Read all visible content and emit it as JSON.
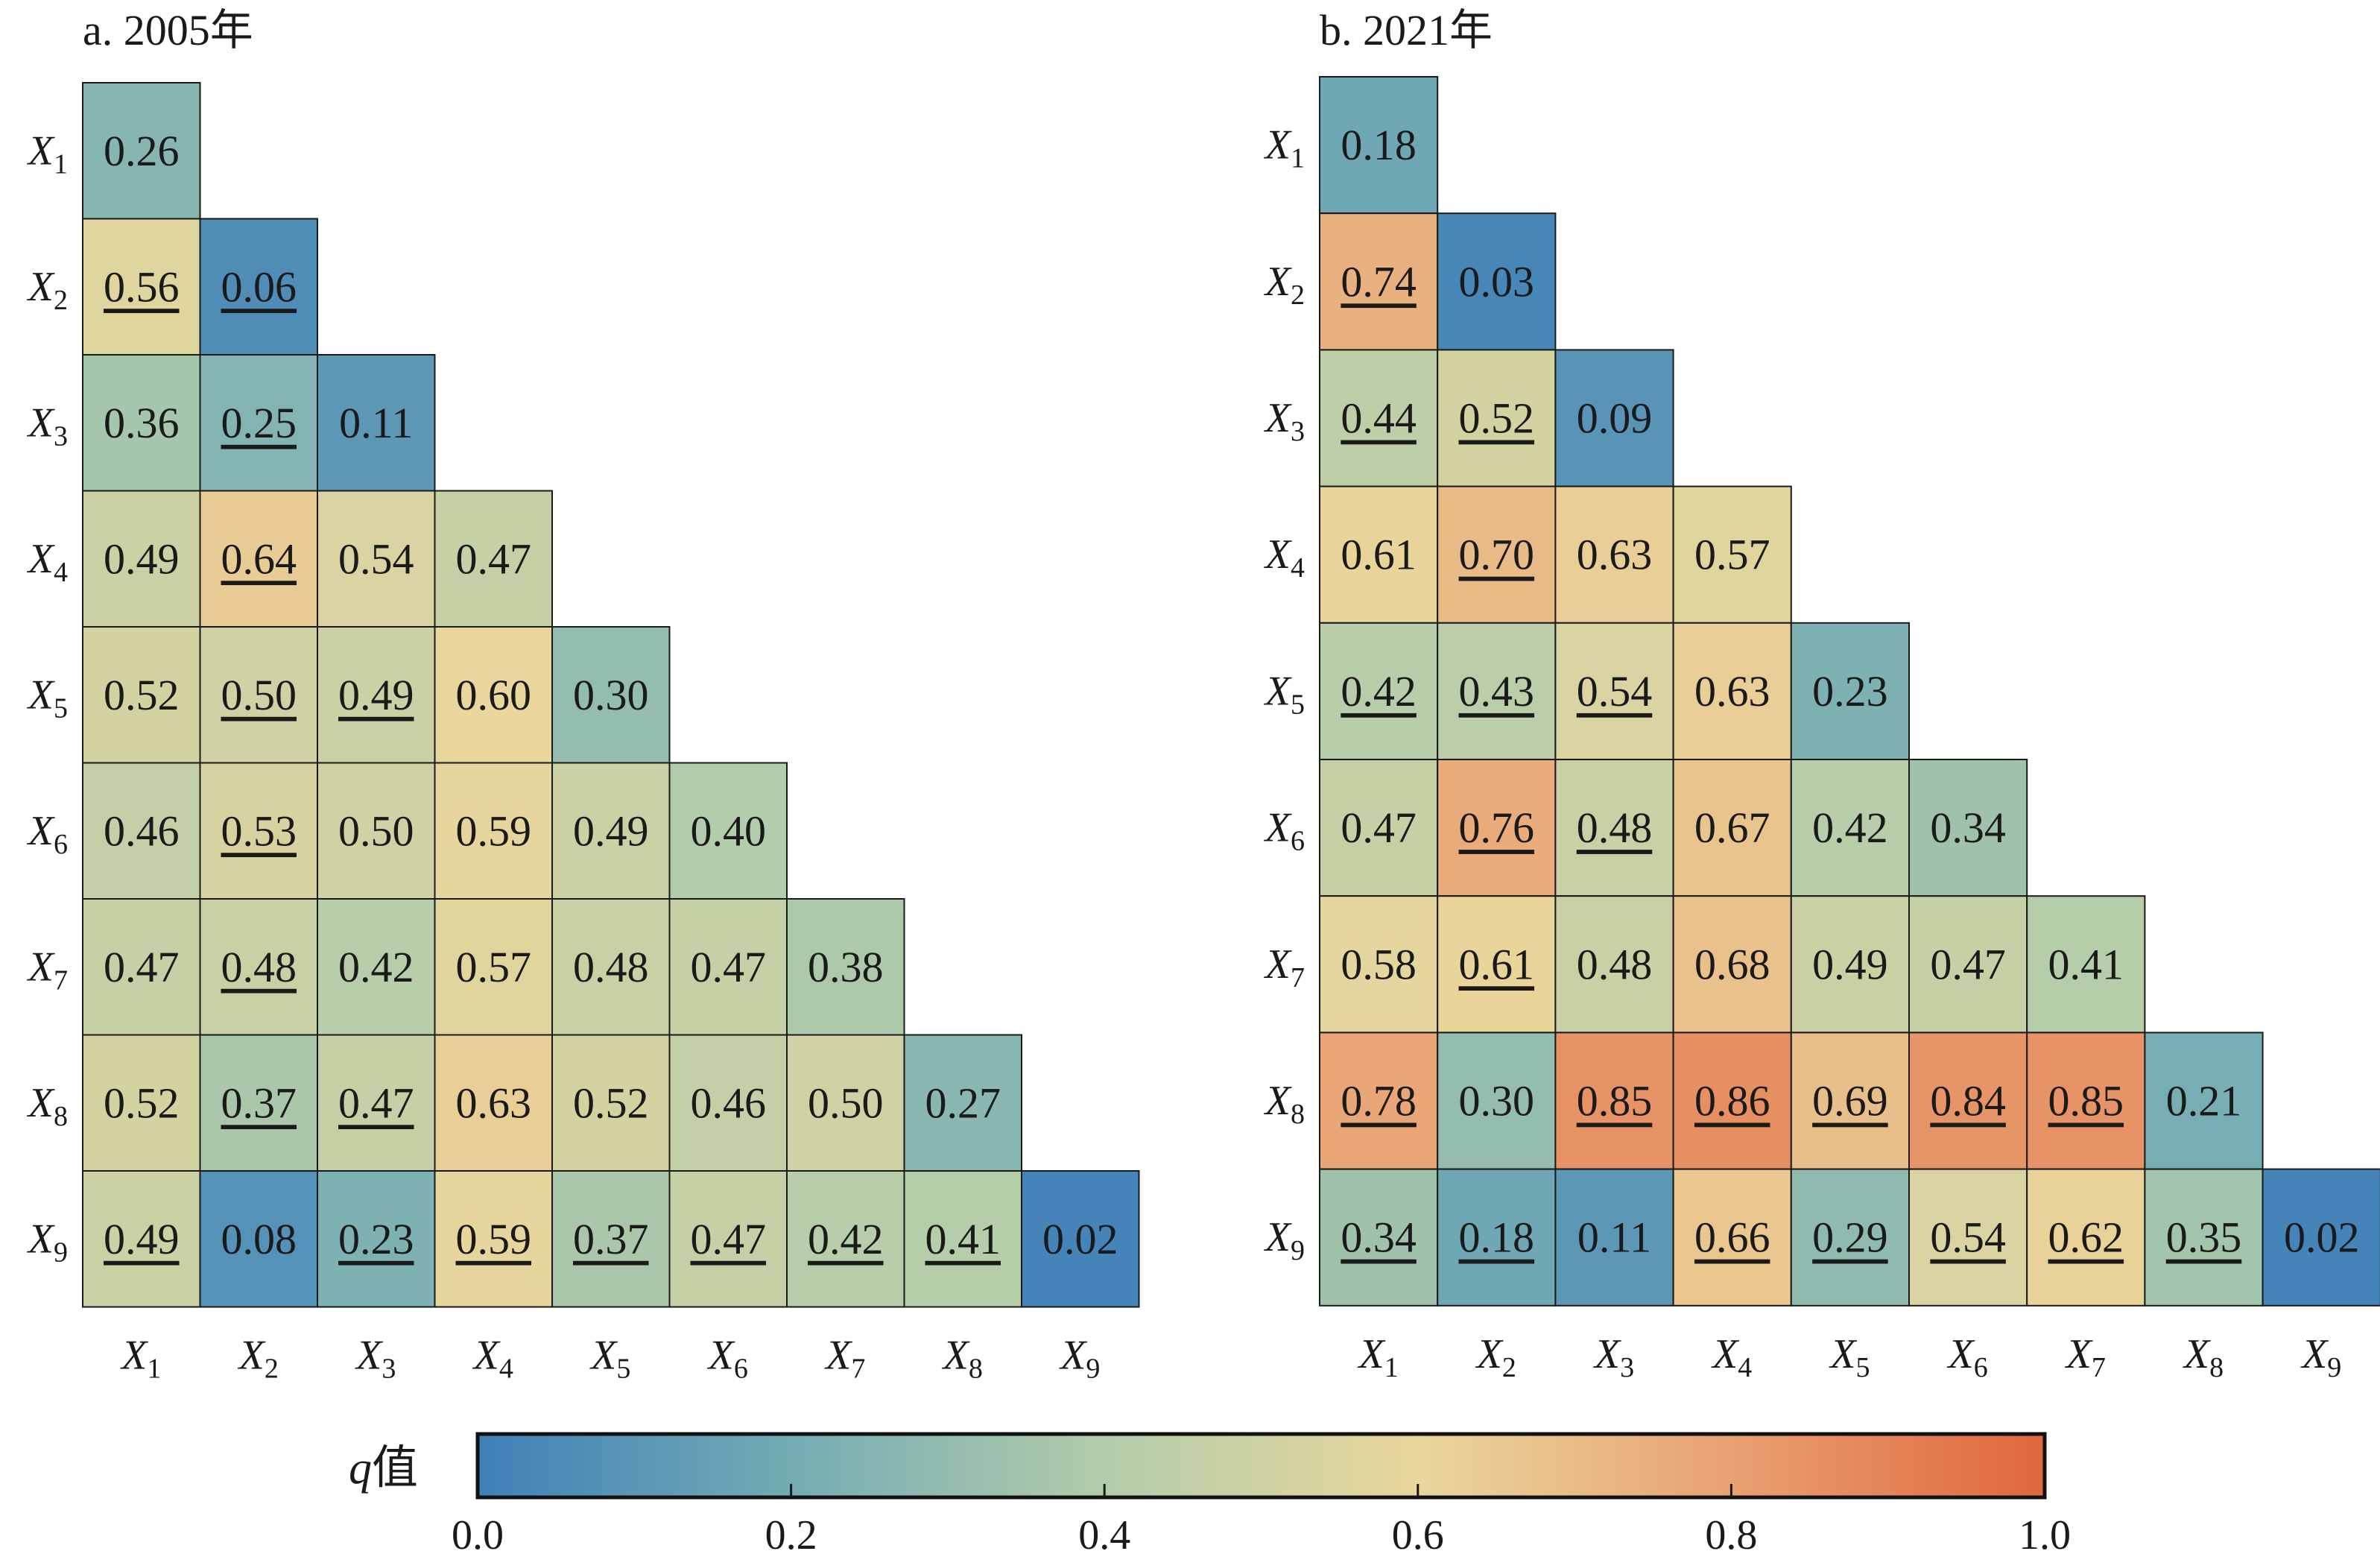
{
  "chart_data": [
    {
      "type": "heatmap",
      "title": "a. 2005年",
      "labels": [
        "X1",
        "X2",
        "X3",
        "X4",
        "X5",
        "X6",
        "X7",
        "X8",
        "X9"
      ],
      "rows": [
        [
          0.26
        ],
        [
          0.56,
          0.06
        ],
        [
          0.36,
          0.25,
          0.11
        ],
        [
          0.49,
          0.64,
          0.54,
          0.47
        ],
        [
          0.52,
          0.5,
          0.49,
          0.6,
          0.3
        ],
        [
          0.46,
          0.53,
          0.5,
          0.59,
          0.49,
          0.4
        ],
        [
          0.47,
          0.48,
          0.42,
          0.57,
          0.48,
          0.47,
          0.38
        ],
        [
          0.52,
          0.37,
          0.47,
          0.63,
          0.52,
          0.46,
          0.5,
          0.27
        ],
        [
          0.49,
          0.08,
          0.23,
          0.59,
          0.37,
          0.47,
          0.42,
          0.41,
          0.02
        ]
      ],
      "underlined": [
        [
          false
        ],
        [
          true,
          true
        ],
        [
          false,
          true,
          false
        ],
        [
          false,
          true,
          false,
          false
        ],
        [
          false,
          true,
          true,
          false,
          false
        ],
        [
          false,
          true,
          false,
          false,
          false,
          false
        ],
        [
          false,
          true,
          false,
          false,
          false,
          false,
          false
        ],
        [
          false,
          true,
          true,
          false,
          false,
          false,
          false,
          false
        ],
        [
          true,
          false,
          true,
          true,
          true,
          true,
          true,
          true,
          false
        ]
      ]
    },
    {
      "type": "heatmap",
      "title": "b. 2021年",
      "labels": [
        "X1",
        "X2",
        "X3",
        "X4",
        "X5",
        "X6",
        "X7",
        "X8",
        "X9"
      ],
      "rows": [
        [
          0.18
        ],
        [
          0.74,
          0.03
        ],
        [
          0.44,
          0.52,
          0.09
        ],
        [
          0.61,
          0.7,
          0.63,
          0.57
        ],
        [
          0.42,
          0.43,
          0.54,
          0.63,
          0.23
        ],
        [
          0.47,
          0.76,
          0.48,
          0.67,
          0.42,
          0.34
        ],
        [
          0.58,
          0.61,
          0.48,
          0.68,
          0.49,
          0.47,
          0.41
        ],
        [
          0.78,
          0.3,
          0.85,
          0.86,
          0.69,
          0.84,
          0.85,
          0.21
        ],
        [
          0.34,
          0.18,
          0.11,
          0.66,
          0.29,
          0.54,
          0.62,
          0.35,
          0.02
        ]
      ],
      "underlined": [
        [
          false
        ],
        [
          true,
          false
        ],
        [
          true,
          true,
          false
        ],
        [
          false,
          true,
          false,
          false
        ],
        [
          true,
          true,
          true,
          false,
          false
        ],
        [
          false,
          true,
          true,
          false,
          false,
          false
        ],
        [
          false,
          true,
          false,
          false,
          false,
          false,
          false
        ],
        [
          true,
          false,
          true,
          true,
          true,
          true,
          true,
          false
        ],
        [
          true,
          true,
          false,
          true,
          true,
          true,
          true,
          true,
          false
        ]
      ]
    }
  ],
  "colorbar": {
    "title_var": "q",
    "title_suffix": "值",
    "ticks": [
      "0.0",
      "0.2",
      "0.4",
      "0.6",
      "0.8",
      "1.0"
    ],
    "range": [
      0,
      1
    ],
    "stops": [
      "#3f80b9",
      "#74acb3",
      "#b3ccab",
      "#e9d79c",
      "#e9a172",
      "#e0673d"
    ]
  }
}
